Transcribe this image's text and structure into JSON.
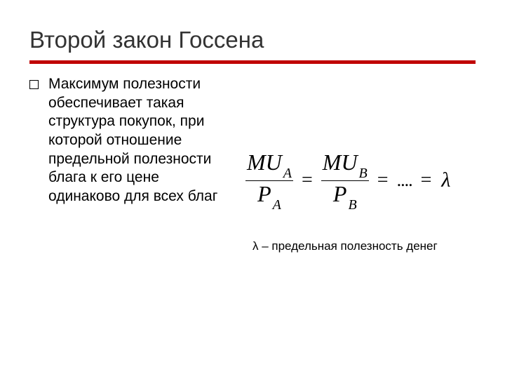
{
  "title": "Второй закон Госсена",
  "body_text": "Максимум полезности обеспечивает такая структура покупок, при которой отношение предельной полезности блага к его цене одинаково для всех благ",
  "formula": {
    "term1_top_var": "MU",
    "term1_top_sub": "A",
    "term1_bot_var": "P",
    "term1_bot_sub": "A",
    "term2_top_var": "MU",
    "term2_top_sub": "B",
    "term2_bot_var": "P",
    "term2_bot_sub": "B",
    "eq": "=",
    "dots": "....",
    "lambda": "λ"
  },
  "note": "λ – предельная полезность денег",
  "colors": {
    "accent": "#c00000",
    "text": "#000000",
    "title": "#333333",
    "background": "#ffffff"
  },
  "fonts": {
    "body_size": 21,
    "title_size": 33,
    "formula_size": 32,
    "note_size": 17
  }
}
